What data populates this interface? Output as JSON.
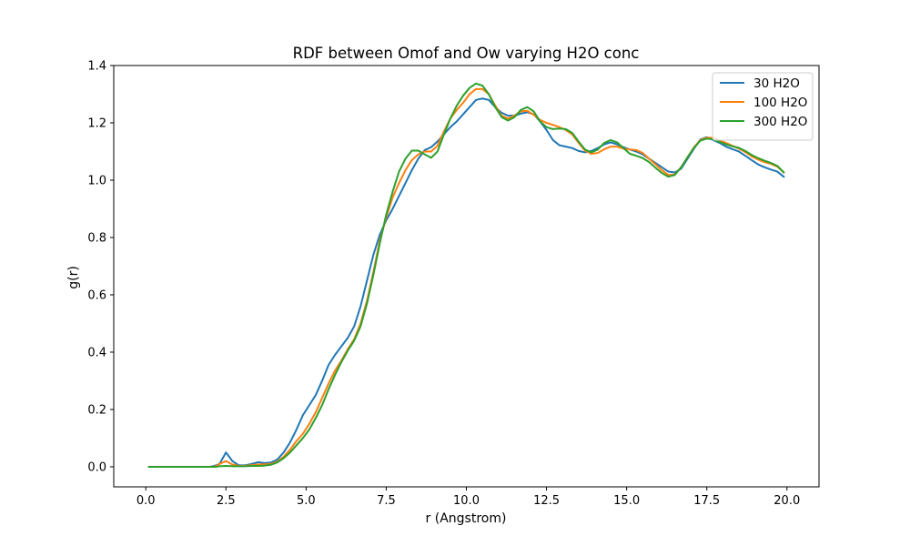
{
  "chart_data": {
    "type": "line",
    "title": "RDF between Omof and Ow varying H2O conc",
    "xlabel": "r (Angstrom)",
    "ylabel": "g(r)",
    "xlim": [
      -1.0,
      21.0
    ],
    "ylim": [
      -0.07,
      1.4
    ],
    "xticks": [
      0.0,
      2.5,
      5.0,
      7.5,
      10.0,
      12.5,
      15.0,
      17.5,
      20.0
    ],
    "xtick_labels": [
      "0.0",
      "2.5",
      "5.0",
      "7.5",
      "10.0",
      "12.5",
      "15.0",
      "17.5",
      "20.0"
    ],
    "yticks": [
      0.0,
      0.2,
      0.4,
      0.6,
      0.8,
      1.0,
      1.2,
      1.4
    ],
    "ytick_labels": [
      "0.0",
      "0.2",
      "0.4",
      "0.6",
      "0.8",
      "1.0",
      "1.2",
      "1.4"
    ],
    "grid": false,
    "legend": "upper right",
    "series": [
      {
        "name": "30 H2O",
        "color": "#1f77b4",
        "points": [
          [
            0.1,
            0
          ],
          [
            2.0,
            0
          ],
          [
            2.2,
            0.005
          ],
          [
            2.3,
            0.01
          ],
          [
            2.5,
            0.05
          ],
          [
            2.7,
            0.02
          ],
          [
            2.9,
            0.005
          ],
          [
            3.1,
            0.005
          ],
          [
            3.3,
            0.01
          ],
          [
            3.5,
            0.016
          ],
          [
            3.7,
            0.013
          ],
          [
            3.9,
            0.015
          ],
          [
            4.1,
            0.025
          ],
          [
            4.3,
            0.05
          ],
          [
            4.5,
            0.085
          ],
          [
            4.7,
            0.13
          ],
          [
            4.9,
            0.18
          ],
          [
            5.1,
            0.215
          ],
          [
            5.3,
            0.25
          ],
          [
            5.5,
            0.3
          ],
          [
            5.7,
            0.355
          ],
          [
            5.9,
            0.39
          ],
          [
            6.1,
            0.42
          ],
          [
            6.3,
            0.45
          ],
          [
            6.5,
            0.49
          ],
          [
            6.7,
            0.56
          ],
          [
            6.9,
            0.65
          ],
          [
            7.1,
            0.74
          ],
          [
            7.3,
            0.81
          ],
          [
            7.5,
            0.86
          ],
          [
            7.7,
            0.9
          ],
          [
            7.9,
            0.945
          ],
          [
            8.1,
            0.99
          ],
          [
            8.3,
            1.035
          ],
          [
            8.5,
            1.075
          ],
          [
            8.7,
            1.105
          ],
          [
            8.9,
            1.115
          ],
          [
            9.1,
            1.135
          ],
          [
            9.3,
            1.16
          ],
          [
            9.5,
            1.185
          ],
          [
            9.7,
            1.205
          ],
          [
            9.9,
            1.23
          ],
          [
            10.1,
            1.255
          ],
          [
            10.3,
            1.28
          ],
          [
            10.5,
            1.285
          ],
          [
            10.7,
            1.28
          ],
          [
            10.9,
            1.255
          ],
          [
            11.1,
            1.235
          ],
          [
            11.3,
            1.225
          ],
          [
            11.5,
            1.225
          ],
          [
            11.7,
            1.232
          ],
          [
            11.9,
            1.237
          ],
          [
            12.1,
            1.23
          ],
          [
            12.3,
            1.205
          ],
          [
            12.5,
            1.175
          ],
          [
            12.7,
            1.14
          ],
          [
            12.9,
            1.122
          ],
          [
            13.1,
            1.117
          ],
          [
            13.3,
            1.112
          ],
          [
            13.5,
            1.102
          ],
          [
            13.7,
            1.097
          ],
          [
            13.9,
            1.102
          ],
          [
            14.1,
            1.112
          ],
          [
            14.3,
            1.125
          ],
          [
            14.5,
            1.132
          ],
          [
            14.7,
            1.125
          ],
          [
            14.9,
            1.115
          ],
          [
            15.1,
            1.107
          ],
          [
            15.3,
            1.1
          ],
          [
            15.5,
            1.09
          ],
          [
            15.7,
            1.075
          ],
          [
            15.9,
            1.06
          ],
          [
            16.1,
            1.045
          ],
          [
            16.3,
            1.03
          ],
          [
            16.5,
            1.027
          ],
          [
            16.7,
            1.04
          ],
          [
            16.9,
            1.075
          ],
          [
            17.1,
            1.11
          ],
          [
            17.3,
            1.142
          ],
          [
            17.5,
            1.15
          ],
          [
            17.7,
            1.14
          ],
          [
            17.9,
            1.13
          ],
          [
            18.1,
            1.117
          ],
          [
            18.3,
            1.108
          ],
          [
            18.5,
            1.1
          ],
          [
            18.7,
            1.085
          ],
          [
            18.9,
            1.07
          ],
          [
            19.1,
            1.055
          ],
          [
            19.3,
            1.045
          ],
          [
            19.5,
            1.037
          ],
          [
            19.7,
            1.03
          ],
          [
            19.9,
            1.012
          ]
        ]
      },
      {
        "name": "100 H2O",
        "color": "#ff7f0e",
        "points": [
          [
            0.1,
            0
          ],
          [
            2.0,
            0
          ],
          [
            2.2,
            0.002
          ],
          [
            2.3,
            0.01
          ],
          [
            2.5,
            0.02
          ],
          [
            2.7,
            0.008
          ],
          [
            2.9,
            0.003
          ],
          [
            3.1,
            0.003
          ],
          [
            3.3,
            0.006
          ],
          [
            3.5,
            0.008
          ],
          [
            3.7,
            0.008
          ],
          [
            3.9,
            0.01
          ],
          [
            4.1,
            0.018
          ],
          [
            4.3,
            0.035
          ],
          [
            4.5,
            0.06
          ],
          [
            4.7,
            0.09
          ],
          [
            4.9,
            0.115
          ],
          [
            5.1,
            0.15
          ],
          [
            5.3,
            0.19
          ],
          [
            5.5,
            0.24
          ],
          [
            5.7,
            0.29
          ],
          [
            5.9,
            0.335
          ],
          [
            6.1,
            0.37
          ],
          [
            6.3,
            0.41
          ],
          [
            6.5,
            0.445
          ],
          [
            6.7,
            0.5
          ],
          [
            6.9,
            0.58
          ],
          [
            7.1,
            0.68
          ],
          [
            7.3,
            0.79
          ],
          [
            7.5,
            0.87
          ],
          [
            7.7,
            0.94
          ],
          [
            7.9,
            0.99
          ],
          [
            8.1,
            1.035
          ],
          [
            8.3,
            1.07
          ],
          [
            8.5,
            1.09
          ],
          [
            8.7,
            1.1
          ],
          [
            8.9,
            1.1
          ],
          [
            9.1,
            1.12
          ],
          [
            9.3,
            1.17
          ],
          [
            9.5,
            1.215
          ],
          [
            9.7,
            1.245
          ],
          [
            9.9,
            1.27
          ],
          [
            10.1,
            1.3
          ],
          [
            10.3,
            1.318
          ],
          [
            10.5,
            1.318
          ],
          [
            10.7,
            1.3
          ],
          [
            10.9,
            1.26
          ],
          [
            11.1,
            1.225
          ],
          [
            11.3,
            1.215
          ],
          [
            11.5,
            1.225
          ],
          [
            11.7,
            1.24
          ],
          [
            11.9,
            1.242
          ],
          [
            12.1,
            1.228
          ],
          [
            12.3,
            1.21
          ],
          [
            12.5,
            1.2
          ],
          [
            12.7,
            1.193
          ],
          [
            12.9,
            1.185
          ],
          [
            13.1,
            1.175
          ],
          [
            13.3,
            1.16
          ],
          [
            13.5,
            1.13
          ],
          [
            13.7,
            1.103
          ],
          [
            13.9,
            1.092
          ],
          [
            14.1,
            1.095
          ],
          [
            14.3,
            1.108
          ],
          [
            14.5,
            1.117
          ],
          [
            14.7,
            1.117
          ],
          [
            14.9,
            1.11
          ],
          [
            15.1,
            1.107
          ],
          [
            15.3,
            1.105
          ],
          [
            15.5,
            1.095
          ],
          [
            15.7,
            1.075
          ],
          [
            15.9,
            1.055
          ],
          [
            16.1,
            1.035
          ],
          [
            16.3,
            1.018
          ],
          [
            16.5,
            1.02
          ],
          [
            16.7,
            1.045
          ],
          [
            16.9,
            1.08
          ],
          [
            17.1,
            1.115
          ],
          [
            17.3,
            1.14
          ],
          [
            17.5,
            1.148
          ],
          [
            17.7,
            1.148
          ],
          [
            17.9,
            1.138
          ],
          [
            18.1,
            1.13
          ],
          [
            18.3,
            1.12
          ],
          [
            18.5,
            1.11
          ],
          [
            18.7,
            1.098
          ],
          [
            18.9,
            1.083
          ],
          [
            19.1,
            1.072
          ],
          [
            19.3,
            1.063
          ],
          [
            19.5,
            1.057
          ],
          [
            19.7,
            1.047
          ],
          [
            19.9,
            1.027
          ]
        ]
      },
      {
        "name": "300 H2O",
        "color": "#2ca02c",
        "points": [
          [
            0.1,
            0
          ],
          [
            2.0,
            0
          ],
          [
            2.2,
            0
          ],
          [
            2.3,
            0.002
          ],
          [
            2.5,
            0.003
          ],
          [
            2.7,
            0.002
          ],
          [
            2.9,
            0.002
          ],
          [
            3.1,
            0.002
          ],
          [
            3.3,
            0.003
          ],
          [
            3.5,
            0.003
          ],
          [
            3.7,
            0.004
          ],
          [
            3.9,
            0.007
          ],
          [
            4.1,
            0.015
          ],
          [
            4.3,
            0.03
          ],
          [
            4.5,
            0.05
          ],
          [
            4.7,
            0.075
          ],
          [
            4.9,
            0.1
          ],
          [
            5.1,
            0.13
          ],
          [
            5.3,
            0.17
          ],
          [
            5.5,
            0.215
          ],
          [
            5.7,
            0.27
          ],
          [
            5.9,
            0.32
          ],
          [
            6.1,
            0.365
          ],
          [
            6.3,
            0.405
          ],
          [
            6.5,
            0.44
          ],
          [
            6.7,
            0.49
          ],
          [
            6.9,
            0.57
          ],
          [
            7.1,
            0.67
          ],
          [
            7.3,
            0.78
          ],
          [
            7.5,
            0.88
          ],
          [
            7.7,
            0.96
          ],
          [
            7.9,
            1.03
          ],
          [
            8.1,
            1.075
          ],
          [
            8.3,
            1.103
          ],
          [
            8.5,
            1.103
          ],
          [
            8.7,
            1.09
          ],
          [
            8.9,
            1.078
          ],
          [
            9.1,
            1.1
          ],
          [
            9.3,
            1.16
          ],
          [
            9.5,
            1.215
          ],
          [
            9.7,
            1.26
          ],
          [
            9.9,
            1.295
          ],
          [
            10.1,
            1.322
          ],
          [
            10.3,
            1.337
          ],
          [
            10.5,
            1.33
          ],
          [
            10.7,
            1.3
          ],
          [
            10.9,
            1.255
          ],
          [
            11.1,
            1.22
          ],
          [
            11.3,
            1.208
          ],
          [
            11.5,
            1.22
          ],
          [
            11.7,
            1.245
          ],
          [
            11.9,
            1.255
          ],
          [
            12.1,
            1.24
          ],
          [
            12.3,
            1.205
          ],
          [
            12.5,
            1.185
          ],
          [
            12.7,
            1.178
          ],
          [
            12.9,
            1.18
          ],
          [
            13.1,
            1.178
          ],
          [
            13.3,
            1.165
          ],
          [
            13.5,
            1.135
          ],
          [
            13.7,
            1.107
          ],
          [
            13.9,
            1.097
          ],
          [
            14.1,
            1.107
          ],
          [
            14.3,
            1.13
          ],
          [
            14.5,
            1.14
          ],
          [
            14.7,
            1.132
          ],
          [
            14.9,
            1.112
          ],
          [
            15.1,
            1.092
          ],
          [
            15.3,
            1.085
          ],
          [
            15.5,
            1.077
          ],
          [
            15.7,
            1.063
          ],
          [
            15.9,
            1.043
          ],
          [
            16.1,
            1.025
          ],
          [
            16.3,
            1.012
          ],
          [
            16.5,
            1.018
          ],
          [
            16.7,
            1.045
          ],
          [
            16.9,
            1.08
          ],
          [
            17.1,
            1.113
          ],
          [
            17.3,
            1.138
          ],
          [
            17.5,
            1.145
          ],
          [
            17.7,
            1.143
          ],
          [
            17.9,
            1.133
          ],
          [
            18.1,
            1.125
          ],
          [
            18.3,
            1.118
          ],
          [
            18.5,
            1.113
          ],
          [
            18.7,
            1.102
          ],
          [
            18.9,
            1.088
          ],
          [
            19.1,
            1.077
          ],
          [
            19.3,
            1.068
          ],
          [
            19.5,
            1.06
          ],
          [
            19.7,
            1.05
          ],
          [
            19.9,
            1.027
          ]
        ]
      }
    ]
  }
}
